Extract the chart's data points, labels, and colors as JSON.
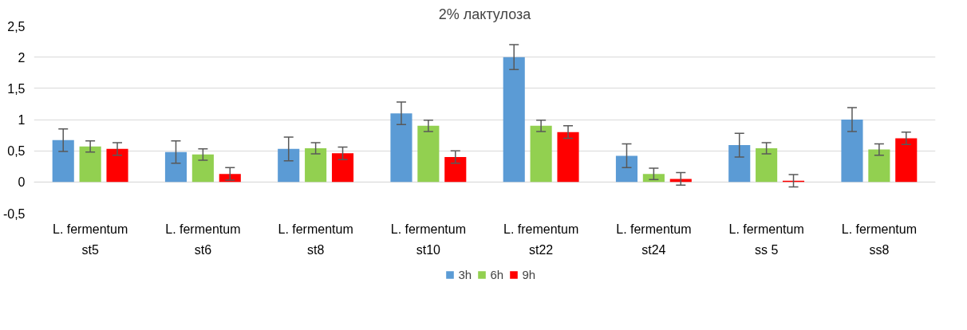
{
  "chart_data": {
    "type": "bar",
    "title": "2% лактулоза",
    "categories": [
      "L. fermentum\nst5",
      "L. fermentum\nst6",
      "L. fermentum\nst8",
      "L. fermentum\nst10",
      "L. frementum\nst22",
      "L. fermentum\nst24",
      "L. fermentum\nss 5",
      "L. fermentum\nss8"
    ],
    "series": [
      {
        "name": "3h",
        "color": "#5b9bd5",
        "values": [
          0.67,
          0.48,
          0.53,
          1.1,
          2.0,
          0.42,
          0.59,
          1.0
        ],
        "errors": [
          0.18,
          0.18,
          0.19,
          0.18,
          0.2,
          0.19,
          0.19,
          0.19
        ]
      },
      {
        "name": "6h",
        "color": "#92d050",
        "values": [
          0.57,
          0.44,
          0.54,
          0.9,
          0.9,
          0.13,
          0.54,
          0.52
        ],
        "errors": [
          0.09,
          0.09,
          0.09,
          0.09,
          0.09,
          0.09,
          0.09,
          0.09
        ]
      },
      {
        "name": "9h",
        "color": "#ff0000",
        "values": [
          0.53,
          0.13,
          0.46,
          0.4,
          0.8,
          0.05,
          0.02,
          0.7
        ],
        "errors": [
          0.1,
          0.1,
          0.1,
          0.1,
          0.1,
          0.1,
          0.1,
          0.1
        ]
      }
    ],
    "ylim": [
      -0.5,
      2.5
    ],
    "yticks": [
      {
        "value": -0.5,
        "label": "-0,5"
      },
      0,
      {
        "value": 0.5,
        "label": "0,5"
      },
      1,
      {
        "value": 1.5,
        "label": "1,5"
      },
      2,
      {
        "value": 2.5,
        "label": "2,5"
      }
    ],
    "grid": "y",
    "legend": "bottom"
  }
}
